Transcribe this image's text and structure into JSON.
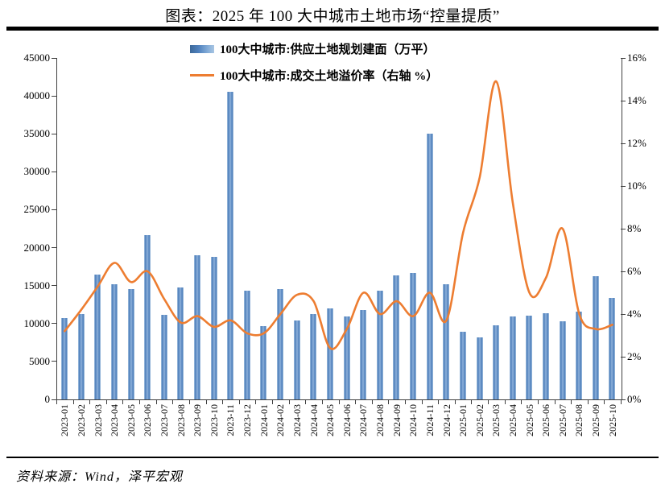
{
  "header": {
    "title": "图表：2025 年 100 大中城市土地市场“控量提质”"
  },
  "footer": {
    "source": "资料来源：Wind，泽平宏观"
  },
  "chart_data": {
    "type": "combo",
    "title": "图表：2025 年 100 大中城市土地市场“控量提质”",
    "grid": false,
    "legend_position": "top-center",
    "categories": [
      "2023-01",
      "2023-02",
      "2023-03",
      "2023-04",
      "2023-05",
      "2023-06",
      "2023-07",
      "2023-08",
      "2023-09",
      "2023-10",
      "2023-11",
      "2023-12",
      "2024-01",
      "2024-02",
      "2024-03",
      "2024-04",
      "2024-05",
      "2024-06",
      "2024-07",
      "2024-08",
      "2024-09",
      "2024-10",
      "2024-11",
      "2024-12",
      "2025-01",
      "2025-02",
      "2025-03",
      "2025-04",
      "2025-05",
      "2025-06",
      "2025-07",
      "2025-08",
      "2025-09",
      "2025-10"
    ],
    "series": [
      {
        "name": "100大中城市:供应土地规划建面（万平）",
        "type": "bar",
        "axis": "left",
        "values": [
          10700,
          11300,
          16400,
          15200,
          14500,
          21600,
          11100,
          14800,
          19000,
          18800,
          40500,
          14300,
          9700,
          14500,
          10400,
          11200,
          12000,
          10900,
          11800,
          14300,
          16300,
          16700,
          35000,
          15200,
          8900,
          8200,
          9800,
          10900,
          11000,
          11400,
          10300,
          11600,
          16200,
          13400
        ]
      },
      {
        "name": "100大中城市:成交土地溢价率（右轴 %）",
        "type": "line",
        "axis": "right",
        "values": [
          3.2,
          4.2,
          5.3,
          6.4,
          5.5,
          6.0,
          4.7,
          3.6,
          3.9,
          3.4,
          3.7,
          3.1,
          3.1,
          4.0,
          4.9,
          4.6,
          2.4,
          3.3,
          5.0,
          4.0,
          4.6,
          3.9,
          5.0,
          3.7,
          7.8,
          10.4,
          14.9,
          9.2,
          5.0,
          5.7,
          8.0,
          4.0,
          3.3,
          3.5
        ]
      }
    ],
    "left_axis": {
      "min": 0,
      "max": 45000,
      "tick_step": 5000,
      "tick_labels": [
        "0",
        "5000",
        "10000",
        "15000",
        "20000",
        "25000",
        "30000",
        "35000",
        "40000",
        "45000"
      ]
    },
    "right_axis": {
      "min": 0,
      "max": 16,
      "tick_step": 2,
      "tick_labels": [
        "0%",
        "2%",
        "4%",
        "6%",
        "8%",
        "10%",
        "12%",
        "14%",
        "16%"
      ]
    },
    "style": {
      "bar_color": "#4F81BD",
      "bar_edge_light": "#AEC9E5",
      "line_color": "#ED7D31",
      "axis_color": "#404040"
    }
  }
}
